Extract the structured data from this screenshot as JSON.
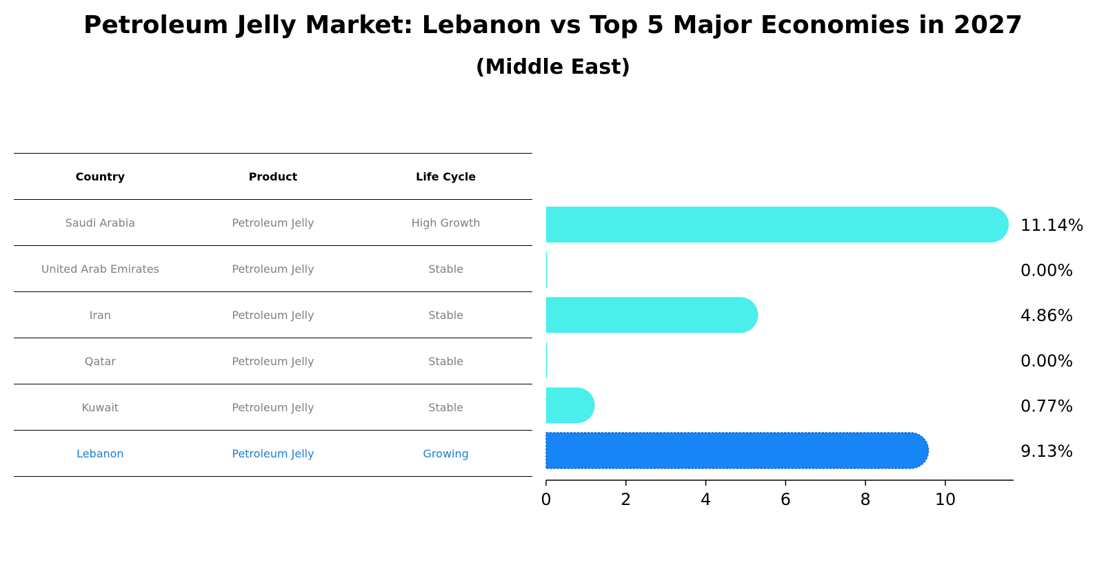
{
  "title": "Petroleum Jelly Market: Lebanon vs Top 5 Major Economies in 2027",
  "subtitle": "(Middle East)",
  "table": {
    "headers": [
      "Country",
      "Product",
      "Life Cycle"
    ],
    "rows": [
      {
        "country": "Saudi Arabia",
        "product": "Petroleum Jelly",
        "life_cycle": "High Growth"
      },
      {
        "country": "United Arab Emirates",
        "product": "Petroleum Jelly",
        "life_cycle": "Stable"
      },
      {
        "country": "Iran",
        "product": "Petroleum Jelly",
        "life_cycle": "Stable"
      },
      {
        "country": "Qatar",
        "product": "Petroleum Jelly",
        "life_cycle": "Stable"
      },
      {
        "country": "Kuwait",
        "product": "Petroleum Jelly",
        "life_cycle": "Stable"
      },
      {
        "country": "Lebanon",
        "product": "Petroleum Jelly",
        "life_cycle": "Growing"
      }
    ],
    "highlight_row": 5
  },
  "chart_data": {
    "type": "bar",
    "orientation": "horizontal",
    "categories": [
      "Saudi Arabia",
      "United Arab Emirates",
      "Iran",
      "Qatar",
      "Kuwait",
      "Lebanon"
    ],
    "values": [
      11.14,
      0.0,
      4.86,
      0.0,
      0.77,
      9.13
    ],
    "value_labels": [
      "11.14%",
      "0.00%",
      "4.86%",
      "0.00%",
      "0.77%",
      "9.13%"
    ],
    "xlim": [
      0,
      11.7
    ],
    "xticks": [
      0,
      2,
      4,
      6,
      8,
      10
    ],
    "grid": false,
    "colors": {
      "default": "#4aeeea",
      "highlight": "#1785f5"
    },
    "highlight_index": 5
  }
}
